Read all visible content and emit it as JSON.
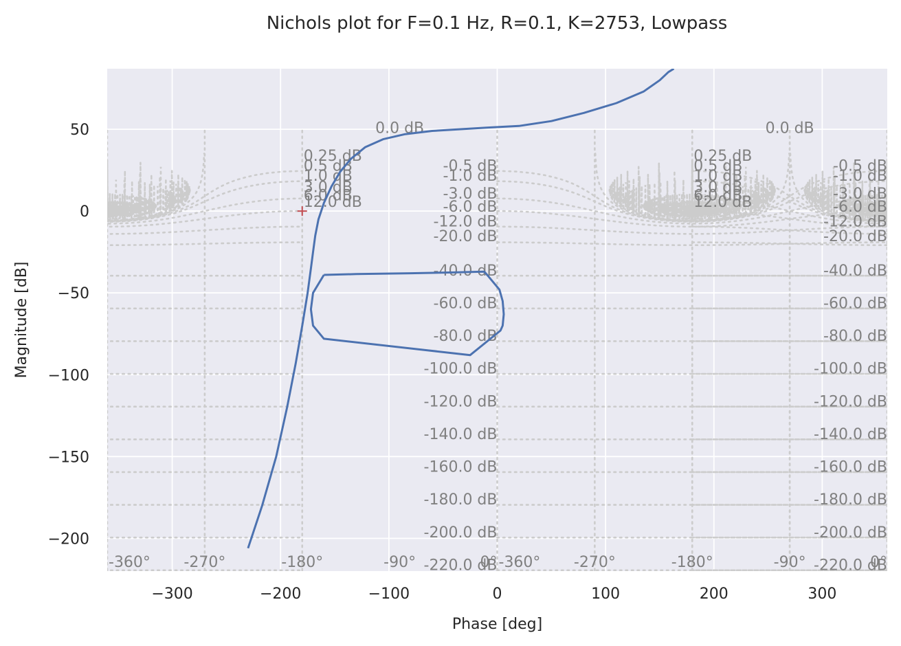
{
  "chart_data": {
    "type": "line",
    "title": "Nichols plot for F=0.1 Hz, R=0.1, K=2753, Lowpass",
    "xlabel": "Phase [deg]",
    "ylabel": "Magnitude [dB]",
    "xlim": [
      -360,
      360
    ],
    "ylim": [
      -220,
      87
    ],
    "xticks": [
      -300,
      -200,
      -100,
      0,
      100,
      200,
      300
    ],
    "xtick_labels": [
      "−300",
      "−200",
      "−100",
      "0",
      "100",
      "200",
      "300"
    ],
    "yticks": [
      50,
      0,
      -50,
      -100,
      -150,
      -200
    ],
    "ytick_labels": [
      "50",
      "0",
      "−50",
      "−100",
      "−150",
      "−200"
    ],
    "grid": true,
    "style": "seaborn-darkgrid",
    "background_color": "#eaeaf2",
    "series": [
      {
        "color": "#4c72b0",
        "x": [
          -230,
          -217,
          -204,
          -194,
          -186,
          -180,
          -175,
          -172,
          -170,
          -168,
          -165,
          -160,
          -153,
          -145,
          -135,
          -122,
          -105,
          -85,
          -60,
          -35,
          -10,
          20,
          50,
          80,
          110,
          135,
          150,
          158,
          163,
          -160,
          -130,
          -80,
          -40,
          -12,
          -8,
          -3,
          2,
          5,
          6,
          5,
          3,
          -25,
          -160,
          -170,
          -172,
          -170,
          -160
        ],
        "y": [
          -206,
          -180,
          -150,
          -120,
          -93,
          -70,
          -50,
          -35,
          -25,
          -15,
          -5,
          5,
          15,
          24,
          32,
          39,
          44,
          47,
          49,
          50,
          51,
          52,
          55,
          60,
          66,
          73,
          80,
          85,
          87,
          -39,
          -38.5,
          -38,
          -37.5,
          -37,
          -40,
          -44,
          -48,
          -55,
          -63,
          -70,
          -73,
          -88,
          -78,
          -70,
          -60,
          -50,
          -39
        ]
      }
    ],
    "critical_point": {
      "x": -180,
      "y": 0,
      "color": "#c44e52"
    },
    "nichols_grid": {
      "color": "#cccccc",
      "closed_loop_db": [
        0.25,
        0.5,
        1.0,
        3.0,
        6.0,
        12.0,
        0.0,
        -0.5,
        -1.0,
        -3.0,
        -6.0,
        -12.0,
        -20.0,
        -40.0,
        -60.0,
        -80.0,
        -100.0,
        -120.0,
        -140.0,
        -160.0,
        -180.0,
        -200.0,
        -220.0
      ],
      "label_offsets_deg": [
        -180,
        360,
        540
      ],
      "magnitude_labels": [
        {
          "text": "0.25 dB",
          "x": -180,
          "y": 34
        },
        {
          "text": "0.5 dB",
          "x": -180,
          "y": 28
        },
        {
          "text": "1.0 dB",
          "x": -180,
          "y": 22
        },
        {
          "text": "3.0 dB",
          "x": -180,
          "y": 15
        },
        {
          "text": "6.0 dB",
          "x": -180,
          "y": 10
        },
        {
          "text": "12.0 dB",
          "x": -180,
          "y": 6
        },
        {
          "text": "0.0 dB",
          "x": -90,
          "y": 51
        },
        {
          "text": "-0.5 dB",
          "x": 0,
          "y": 28
        },
        {
          "text": "-1.0 dB",
          "x": 0,
          "y": 22
        },
        {
          "text": "-3.0 dB",
          "x": 0,
          "y": 11
        },
        {
          "text": "-6.0 dB",
          "x": 0,
          "y": 3
        },
        {
          "text": "-12.0 dB",
          "x": 0,
          "y": -6
        },
        {
          "text": "-20.0 dB",
          "x": 0,
          "y": -15
        },
        {
          "text": "-40.0 dB",
          "x": 0,
          "y": -36
        },
        {
          "text": "-60.0 dB",
          "x": 0,
          "y": -56
        },
        {
          "text": "-80.0 dB",
          "x": 0,
          "y": -76
        },
        {
          "text": "-100.0 dB",
          "x": 0,
          "y": -96
        },
        {
          "text": "-120.0 dB",
          "x": 0,
          "y": -116
        },
        {
          "text": "-140.0 dB",
          "x": 0,
          "y": -136
        },
        {
          "text": "-160.0 dB",
          "x": 0,
          "y": -156
        },
        {
          "text": "-180.0 dB",
          "x": 0,
          "y": -176
        },
        {
          "text": "-200.0 dB",
          "x": 0,
          "y": -196
        },
        {
          "text": "-220.0 dB",
          "x": 0,
          "y": -216
        }
      ],
      "phase_labels": [
        {
          "text": "-360°",
          "x": -360
        },
        {
          "text": "-270°",
          "x": -270
        },
        {
          "text": "-180°",
          "x": -180
        },
        {
          "text": "-90°",
          "x": -90
        },
        {
          "text": "0°",
          "x": 0
        }
      ]
    }
  }
}
